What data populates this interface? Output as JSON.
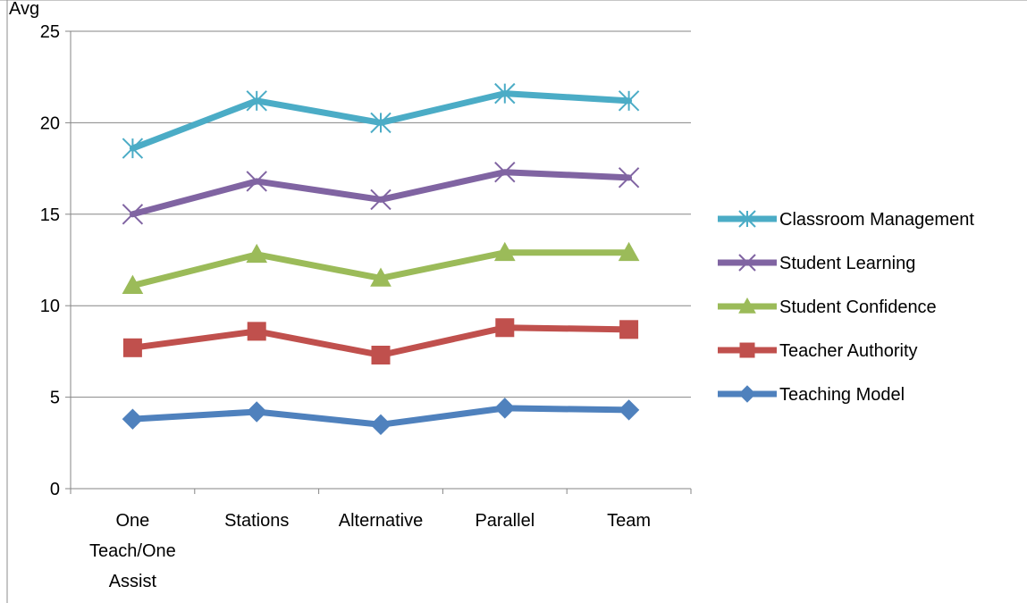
{
  "chart_data": {
    "type": "line",
    "title": "Avg",
    "xlabel": "",
    "ylabel": "",
    "ylim": [
      0,
      25
    ],
    "yticks": [
      0,
      5,
      10,
      15,
      20,
      25
    ],
    "grid": true,
    "legend_position": "right",
    "categories": [
      "One Teach/One Assist",
      "Stations",
      "Alternative",
      "Parallel",
      "Team"
    ],
    "category_lines": [
      [
        "One",
        "Teach/One",
        "Assist"
      ],
      [
        "Stations"
      ],
      [
        "Alternative"
      ],
      [
        "Parallel"
      ],
      [
        "Team"
      ]
    ],
    "series": [
      {
        "name": "Classroom Management",
        "color": "#4bacc6",
        "marker": "star",
        "values": [
          18.6,
          21.2,
          20.0,
          21.6,
          21.2
        ]
      },
      {
        "name": "Student Learning",
        "color": "#8064a2",
        "marker": "x",
        "values": [
          15.0,
          16.8,
          15.8,
          17.3,
          17.0
        ]
      },
      {
        "name": "Student Confidence",
        "color": "#9bbb59",
        "marker": "triangle",
        "values": [
          11.1,
          12.8,
          11.5,
          12.9,
          12.9
        ]
      },
      {
        "name": "Teacher Authority",
        "color": "#c0504d",
        "marker": "square",
        "values": [
          7.7,
          8.6,
          7.3,
          8.8,
          8.7
        ]
      },
      {
        "name": "Teaching Model",
        "color": "#4f81bd",
        "marker": "diamond",
        "values": [
          3.8,
          4.2,
          3.5,
          4.4,
          4.3
        ]
      }
    ]
  }
}
